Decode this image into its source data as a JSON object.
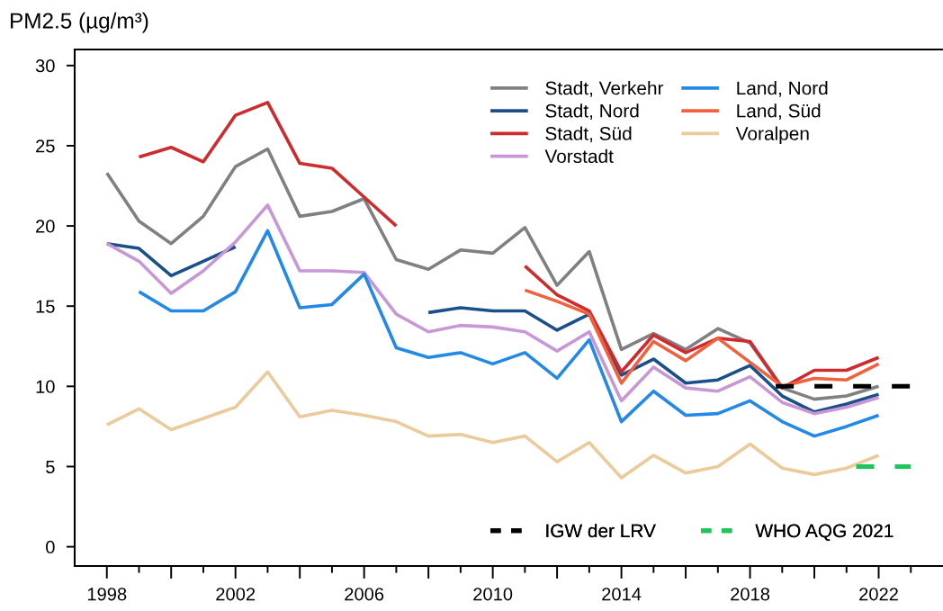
{
  "chart_data": {
    "type": "line",
    "ylabel": "PM2.5 (µg/m³)",
    "x": [
      1998,
      1999,
      2000,
      2001,
      2002,
      2003,
      2004,
      2005,
      2006,
      2007,
      2008,
      2009,
      2010,
      2011,
      2012,
      2013,
      2014,
      2015,
      2016,
      2017,
      2018,
      2019,
      2020,
      2021,
      2022
    ],
    "series": [
      {
        "name": "Stadt, Verkehr",
        "color": "#808080",
        "values": [
          23.3,
          20.3,
          18.9,
          20.6,
          23.7,
          24.8,
          20.6,
          20.9,
          21.7,
          17.9,
          17.3,
          18.5,
          18.3,
          19.9,
          16.3,
          18.4,
          12.3,
          13.3,
          12.3,
          13.6,
          12.7,
          9.9,
          9.2,
          9.4,
          10.0
        ]
      },
      {
        "name": "Stadt, Nord",
        "color": "#1b4f8a",
        "values": [
          18.9,
          18.6,
          16.9,
          17.8,
          18.7,
          null,
          null,
          null,
          null,
          null,
          14.6,
          14.9,
          14.7,
          14.7,
          13.5,
          14.5,
          10.7,
          11.7,
          10.2,
          10.4,
          11.3,
          9.4,
          8.4,
          8.9,
          9.5
        ]
      },
      {
        "name": "Stadt, Süd",
        "color": "#cf2a2e",
        "values": [
          null,
          24.3,
          24.9,
          24.0,
          26.9,
          27.7,
          23.9,
          23.6,
          21.8,
          20.0,
          null,
          null,
          null,
          17.5,
          15.7,
          14.7,
          10.9,
          13.2,
          12.1,
          13.0,
          12.8,
          9.9,
          11.0,
          11.0,
          11.8
        ]
      },
      {
        "name": "Vorstadt",
        "color": "#c997d6",
        "values": [
          18.9,
          17.8,
          15.8,
          17.2,
          19.0,
          21.3,
          17.2,
          17.2,
          17.1,
          14.5,
          13.4,
          13.8,
          13.7,
          13.4,
          12.2,
          13.4,
          9.1,
          11.2,
          9.9,
          9.7,
          10.6,
          9.0,
          8.3,
          8.7,
          9.3
        ]
      },
      {
        "name": "Land, Nord",
        "color": "#2389e6",
        "values": [
          null,
          15.9,
          14.7,
          14.7,
          15.9,
          19.7,
          14.9,
          15.1,
          17.0,
          12.4,
          11.8,
          12.1,
          11.4,
          12.1,
          10.5,
          12.9,
          7.8,
          9.7,
          8.2,
          8.3,
          9.1,
          7.8,
          6.9,
          7.5,
          8.2
        ]
      },
      {
        "name": "Land, Süd",
        "color": "#f2613d",
        "values": [
          null,
          null,
          null,
          null,
          null,
          null,
          null,
          null,
          null,
          null,
          null,
          null,
          null,
          16.0,
          15.3,
          14.5,
          10.2,
          12.8,
          11.6,
          13.0,
          11.5,
          10.0,
          10.5,
          10.4,
          11.4
        ]
      },
      {
        "name": "Voralpen",
        "color": "#ebcb9c",
        "values": [
          7.6,
          8.6,
          7.3,
          8.0,
          8.7,
          10.9,
          8.1,
          8.5,
          8.2,
          7.8,
          6.9,
          7.0,
          6.5,
          6.9,
          5.3,
          6.5,
          4.3,
          5.7,
          4.6,
          5.0,
          6.4,
          4.9,
          4.5,
          4.9,
          5.7
        ]
      },
      {
        "name": "IGW der LRV",
        "color": "#000000",
        "x": [
          2018.8,
          2023
        ],
        "values": [
          10,
          10
        ],
        "line_style": "dashed"
      },
      {
        "name": "WHO AQG 2021",
        "color": "#1fc45c",
        "x": [
          2021.3,
          2023
        ],
        "values": [
          5,
          5
        ],
        "line_style": "dashed"
      }
    ],
    "xlim": [
      1997,
      2024
    ],
    "xticks": [
      1998,
      {
        "value": 1999,
        "label": null
      },
      {
        "value": 2000,
        "label": null
      },
      {
        "value": 2001,
        "label": null
      },
      2002,
      {
        "value": 2003,
        "label": null
      },
      {
        "value": 2004,
        "label": null
      },
      {
        "value": 2005,
        "label": null
      },
      2006,
      {
        "value": 2007,
        "label": null
      },
      {
        "value": 2008,
        "label": null
      },
      {
        "value": 2009,
        "label": null
      },
      2010,
      {
        "value": 2011,
        "label": null
      },
      {
        "value": 2012,
        "label": null
      },
      {
        "value": 2013,
        "label": null
      },
      2014,
      {
        "value": 2015,
        "label": null
      },
      {
        "value": 2016,
        "label": null
      },
      {
        "value": 2017,
        "label": null
      },
      2018,
      {
        "value": 2019,
        "label": null
      },
      {
        "value": 2020,
        "label": null
      },
      {
        "value": 2021,
        "label": null
      },
      2022,
      {
        "value": 2023,
        "label": null
      }
    ],
    "ylim": [
      -1.2,
      31
    ],
    "yticks": [
      0,
      5,
      10,
      15,
      20,
      25,
      30
    ],
    "grid": false,
    "legend": "right"
  }
}
